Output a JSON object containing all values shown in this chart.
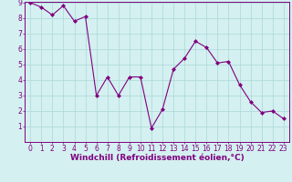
{
  "x": [
    0,
    1,
    2,
    3,
    4,
    5,
    6,
    7,
    8,
    9,
    10,
    11,
    12,
    13,
    14,
    15,
    16,
    17,
    18,
    19,
    20,
    21,
    22,
    23
  ],
  "y": [
    9.0,
    8.7,
    8.2,
    8.8,
    7.8,
    8.1,
    3.0,
    4.2,
    3.0,
    4.2,
    4.2,
    0.9,
    2.1,
    4.7,
    5.4,
    6.5,
    6.1,
    5.1,
    5.2,
    3.7,
    2.6,
    1.9,
    2.0,
    1.5
  ],
  "line_color": "#800080",
  "marker": "D",
  "marker_size": 2.0,
  "bg_color": "#d4f0f0",
  "grid_color": "#aad8d8",
  "axis_color": "#800080",
  "xlabel": "Windchill (Refroidissement éolien,°C)",
  "ylim": [
    0,
    9
  ],
  "xlim": [
    -0.5,
    23.5
  ],
  "yticks": [
    1,
    2,
    3,
    4,
    5,
    6,
    7,
    8,
    9
  ],
  "xticks": [
    0,
    1,
    2,
    3,
    4,
    5,
    6,
    7,
    8,
    9,
    10,
    11,
    12,
    13,
    14,
    15,
    16,
    17,
    18,
    19,
    20,
    21,
    22,
    23
  ],
  "tick_fontsize": 5.5,
  "label_fontsize": 6.5
}
